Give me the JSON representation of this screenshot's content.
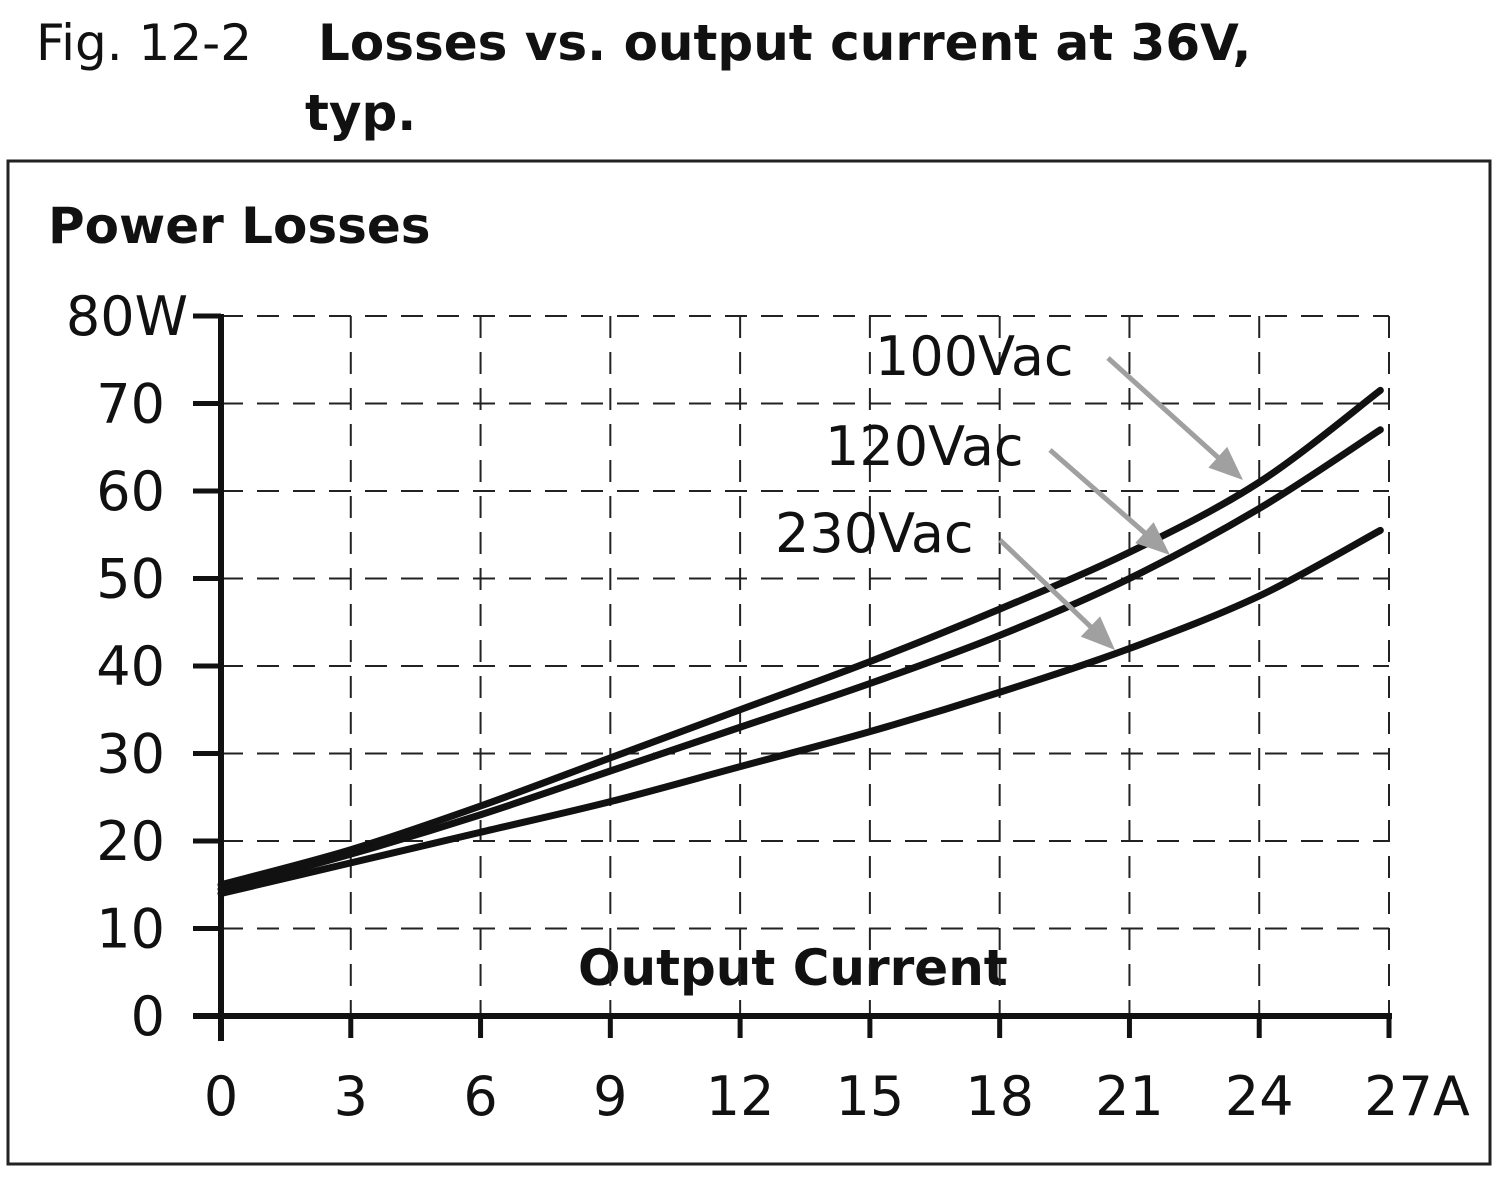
{
  "figure": {
    "number": "Fig. 12-2",
    "title_line1": "Losses vs. output current at 36V,",
    "title_line2": "typ."
  },
  "chart_data": {
    "type": "line",
    "ylabel": "Power Losses",
    "xlabel": "Output Current",
    "xlim": [
      0,
      27
    ],
    "ylim": [
      0,
      80
    ],
    "grid": true,
    "x_ticks": [
      "0",
      "3",
      "6",
      "9",
      "12",
      "15",
      "18",
      "21",
      "24",
      "27A"
    ],
    "y_ticks": [
      "0",
      "10",
      "20",
      "30",
      "40",
      "50",
      "60",
      "70",
      "80W"
    ],
    "x": [
      0,
      3,
      6,
      9,
      12,
      15,
      18,
      21,
      24,
      27
    ],
    "series": [
      {
        "name": "100Vac",
        "values": [
          15,
          19,
          24,
          29.5,
          35,
          40.5,
          46.5,
          53,
          61,
          71.5
        ]
      },
      {
        "name": "120Vac",
        "values": [
          14.5,
          18.5,
          23,
          28,
          33,
          38,
          43.5,
          50,
          58,
          67
        ]
      },
      {
        "name": "230Vac",
        "values": [
          14,
          17.5,
          21,
          24.5,
          28.5,
          32.5,
          37,
          42,
          48,
          55.5
        ]
      }
    ],
    "line_color": "#111111",
    "arrow_color": "#a0a0a0"
  }
}
